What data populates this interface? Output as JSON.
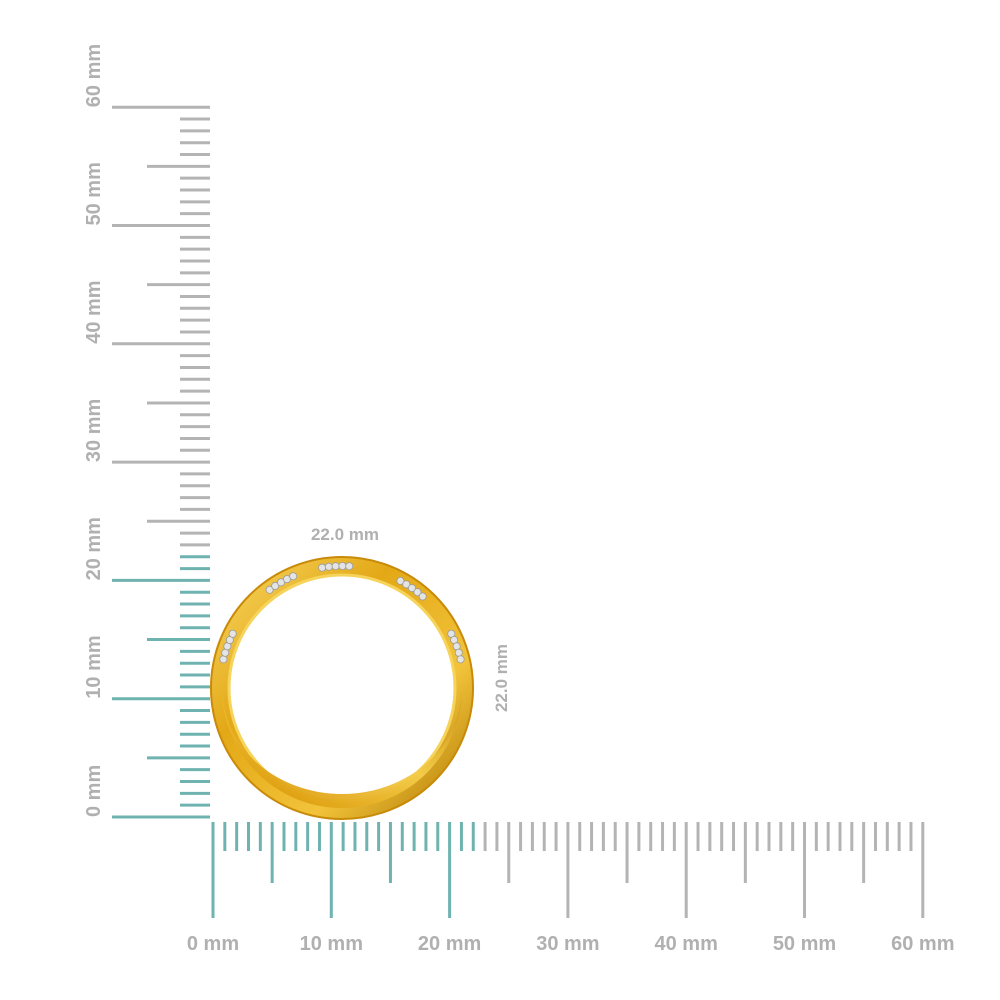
{
  "ruler": {
    "horizontal_labels": [
      "0 mm",
      "10 mm",
      "20 mm",
      "30 mm",
      "40 mm",
      "50 mm",
      "60 mm"
    ],
    "vertical_labels": [
      "0 mm",
      "10 mm",
      "20 mm",
      "30 mm",
      "40 mm",
      "50 mm",
      "60 mm"
    ],
    "range_mm": [
      0,
      60
    ],
    "highlight_mm": 22
  },
  "measurements": {
    "width_label": "22.0 mm",
    "height_label": "22.0 mm"
  },
  "colors": {
    "ruler_gray": "#b4b4b4",
    "ruler_highlight": "#6fb3b0",
    "label_gray": "#b0b0b0",
    "gold": "#e3a816",
    "gold_dark": "#b27c06",
    "gold_light": "#f8d864",
    "diamond": "#e4e4e4"
  },
  "product": {
    "icon": "ring-icon"
  }
}
